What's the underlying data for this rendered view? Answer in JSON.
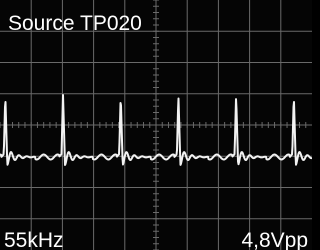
{
  "header": {
    "title": "Source TP020"
  },
  "footer": {
    "frequency": "55kHz",
    "amplitude": "4,8Vpp"
  }
}
